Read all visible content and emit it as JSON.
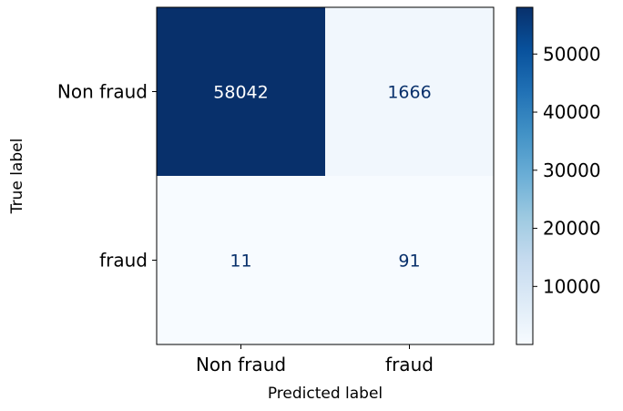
{
  "chart_data": {
    "type": "heatmap",
    "title": "",
    "xlabel": "Predicted label",
    "ylabel": "True label",
    "x_categories": [
      "Non fraud",
      "fraud"
    ],
    "y_categories": [
      "Non fraud",
      "fraud"
    ],
    "values": [
      [
        58042,
        1666
      ],
      [
        11,
        91
      ]
    ],
    "colormap": "Blues",
    "colorbar": {
      "min": 11,
      "max": 58042,
      "ticks": [
        10000,
        20000,
        30000,
        40000,
        50000
      ],
      "tick_labels": [
        "10000",
        "20000",
        "30000",
        "40000",
        "50000"
      ]
    },
    "grid": false
  }
}
